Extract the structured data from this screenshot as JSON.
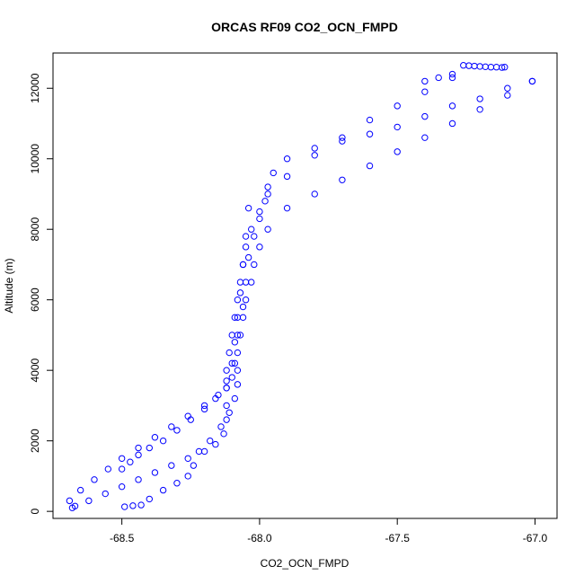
{
  "chart_data": {
    "type": "scatter",
    "title": "ORCAS RF09 CO2_OCN_FMPD",
    "xlabel": "CO2_OCN_FMPD",
    "ylabel": "Altitude (m)",
    "xlim": [
      -68.75,
      -66.92
    ],
    "ylim": [
      -200,
      13000
    ],
    "x_ticks": [
      -68.5,
      -68.0,
      -67.5,
      -67.0
    ],
    "x_tick_labels": [
      "-68.5",
      "-68.0",
      "-67.5",
      "-67.0"
    ],
    "y_ticks": [
      0,
      2000,
      4000,
      6000,
      8000,
      10000,
      12000
    ],
    "y_tick_labels": [
      "0",
      "2000",
      "4000",
      "6000",
      "8000",
      "10000",
      "12000"
    ],
    "marker": "open-circle",
    "color": "#0000ff",
    "grid": false,
    "legend": "none",
    "series": [
      {
        "x": [
          -68.49,
          -68.46,
          -68.43,
          -68.4,
          -68.35,
          -68.3,
          -68.26,
          -68.24,
          -68.22,
          -68.18,
          -68.14,
          -68.11,
          -68.09,
          -68.08,
          -68.08,
          -68.08,
          -68.07,
          -68.06,
          -68.05,
          -68.03,
          -68.02,
          -68.0,
          -67.97,
          -67.9,
          -67.8,
          -67.7,
          -67.6,
          -67.5,
          -67.4,
          -67.3,
          -67.2,
          -67.1,
          -67.01
        ],
        "y": [
          130,
          160,
          180,
          350,
          600,
          800,
          1000,
          1300,
          1700,
          2000,
          2400,
          2800,
          3200,
          3600,
          4000,
          4500,
          5000,
          5500,
          6000,
          6500,
          7000,
          7500,
          8000,
          8600,
          9000,
          9400,
          9800,
          10200,
          10600,
          11000,
          11400,
          11800,
          12200
        ]
      },
      {
        "x": [
          -67.01,
          -67.1,
          -67.2,
          -67.3,
          -67.4,
          -67.5,
          -67.6,
          -67.7,
          -67.8,
          -67.9,
          -67.95,
          -67.97,
          -67.98,
          -68.0,
          -68.02,
          -68.04,
          -68.05,
          -68.06,
          -68.08,
          -68.1,
          -68.12,
          -68.15,
          -68.2,
          -68.26,
          -68.32,
          -68.38,
          -68.44,
          -68.5,
          -68.55,
          -68.6,
          -68.65,
          -68.69,
          -68.68
        ],
        "y": [
          12200,
          12000,
          11700,
          11500,
          11200,
          10900,
          10700,
          10500,
          10300,
          10000,
          9600,
          9200,
          8800,
          8300,
          7800,
          7200,
          6500,
          5800,
          5000,
          4200,
          3700,
          3300,
          3000,
          2700,
          2400,
          2100,
          1800,
          1500,
          1200,
          900,
          600,
          300,
          100
        ]
      },
      {
        "x": [
          -68.67,
          -68.62,
          -68.56,
          -68.5,
          -68.44,
          -68.38,
          -68.32,
          -68.26,
          -68.2,
          -68.16,
          -68.13,
          -68.12,
          -68.12,
          -68.12,
          -68.12,
          -68.11,
          -68.1,
          -68.09,
          -68.08,
          -68.07,
          -68.06,
          -68.05,
          -68.03,
          -68.0,
          -67.97,
          -67.9,
          -67.8,
          -67.7,
          -67.6,
          -67.5,
          -67.4,
          -67.3
        ],
        "y": [
          150,
          300,
          500,
          700,
          900,
          1100,
          1300,
          1500,
          1700,
          1900,
          2200,
          2600,
          3000,
          3500,
          4000,
          4500,
          5000,
          5500,
          6000,
          6500,
          7000,
          7500,
          8000,
          8500,
          9000,
          9500,
          10100,
          10600,
          11100,
          11500,
          11900,
          12300
        ]
      },
      {
        "x": [
          -68.5,
          -68.47,
          -68.44,
          -68.4,
          -68.35,
          -68.3,
          -68.25,
          -68.2,
          -68.16,
          -68.12,
          -68.1,
          -68.09,
          -68.09,
          -68.08,
          -68.07,
          -68.06,
          -68.05,
          -68.04
        ],
        "y": [
          1200,
          1400,
          1600,
          1800,
          2000,
          2300,
          2600,
          2900,
          3200,
          3500,
          3800,
          4200,
          4800,
          5500,
          6200,
          7000,
          7800,
          8600
        ]
      },
      {
        "x": [
          -67.26,
          -67.24,
          -67.22,
          -67.2,
          -67.18,
          -67.16,
          -67.14,
          -67.12,
          -67.11,
          -67.3,
          -67.35,
          -67.4
        ],
        "y": [
          12650,
          12640,
          12630,
          12620,
          12610,
          12600,
          12600,
          12590,
          12600,
          12400,
          12300,
          12200
        ]
      }
    ]
  }
}
